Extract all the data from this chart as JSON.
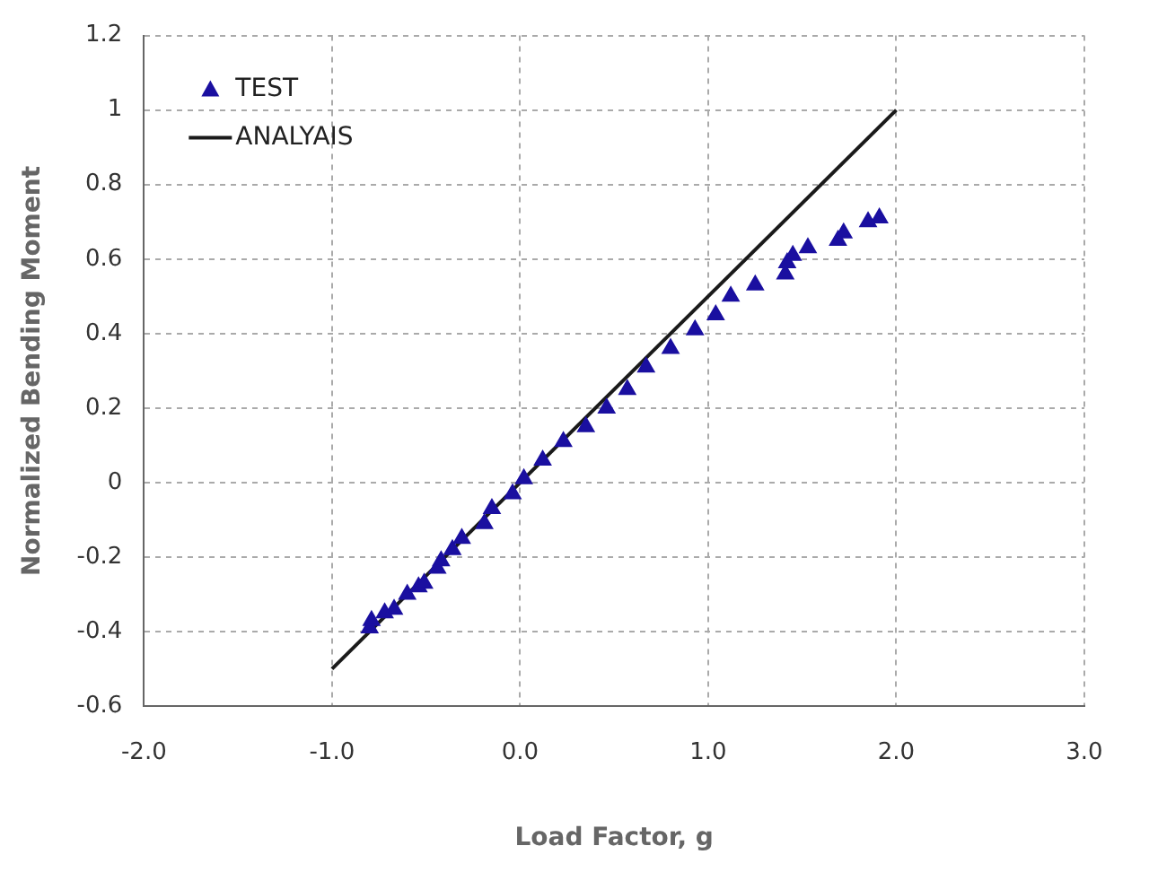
{
  "chart_data": {
    "type": "scatter",
    "xlabel": "Load Factor, g",
    "ylabel": "Normalized Bending Moment",
    "xlim": [
      -2,
      3
    ],
    "xticks": [
      {
        "value": -2,
        "label": "-2.0"
      },
      {
        "value": -1,
        "label": "-1.0"
      },
      {
        "value": 0,
        "label": "0.0"
      },
      {
        "value": 1,
        "label": "1.0"
      },
      {
        "value": 2,
        "label": "2.0"
      },
      {
        "value": 3,
        "label": "3.0"
      }
    ],
    "ylim": [
      -0.6,
      1.2
    ],
    "yticks": [
      -0.6,
      -0.4,
      -0.2,
      0,
      0.2,
      0.4,
      0.6,
      0.8,
      1,
      1.2
    ],
    "grid": true,
    "legend": "top left",
    "marker": "triangle",
    "series": [
      {
        "name": "TEST",
        "type": "scatter",
        "color": "#1a0fa0",
        "x": [
          -0.8,
          -0.79,
          -0.72,
          -0.67,
          -0.6,
          -0.54,
          -0.51,
          -0.44,
          -0.42,
          -0.36,
          -0.31,
          -0.19,
          -0.15,
          -0.04,
          0.02,
          0.12,
          0.23,
          0.35,
          0.46,
          0.57,
          0.67,
          0.8,
          0.93,
          1.04,
          1.12,
          1.25,
          1.41,
          1.42,
          1.45,
          1.53,
          1.69,
          1.72,
          1.85,
          1.91
        ],
        "values": [
          -0.39,
          -0.37,
          -0.35,
          -0.34,
          -0.3,
          -0.28,
          -0.27,
          -0.23,
          -0.21,
          -0.18,
          -0.15,
          -0.11,
          -0.07,
          -0.03,
          0.01,
          0.06,
          0.11,
          0.15,
          0.2,
          0.25,
          0.31,
          0.36,
          0.41,
          0.45,
          0.5,
          0.53,
          0.56,
          0.59,
          0.61,
          0.63,
          0.65,
          0.67,
          0.7,
          0.71
        ]
      },
      {
        "name": "ANALYAIS",
        "type": "line",
        "color": "#1a1a1a",
        "x": [
          -1,
          2
        ],
        "values": [
          -0.5,
          1
        ],
        "marker": "none",
        "line_style": "solid"
      }
    ]
  }
}
